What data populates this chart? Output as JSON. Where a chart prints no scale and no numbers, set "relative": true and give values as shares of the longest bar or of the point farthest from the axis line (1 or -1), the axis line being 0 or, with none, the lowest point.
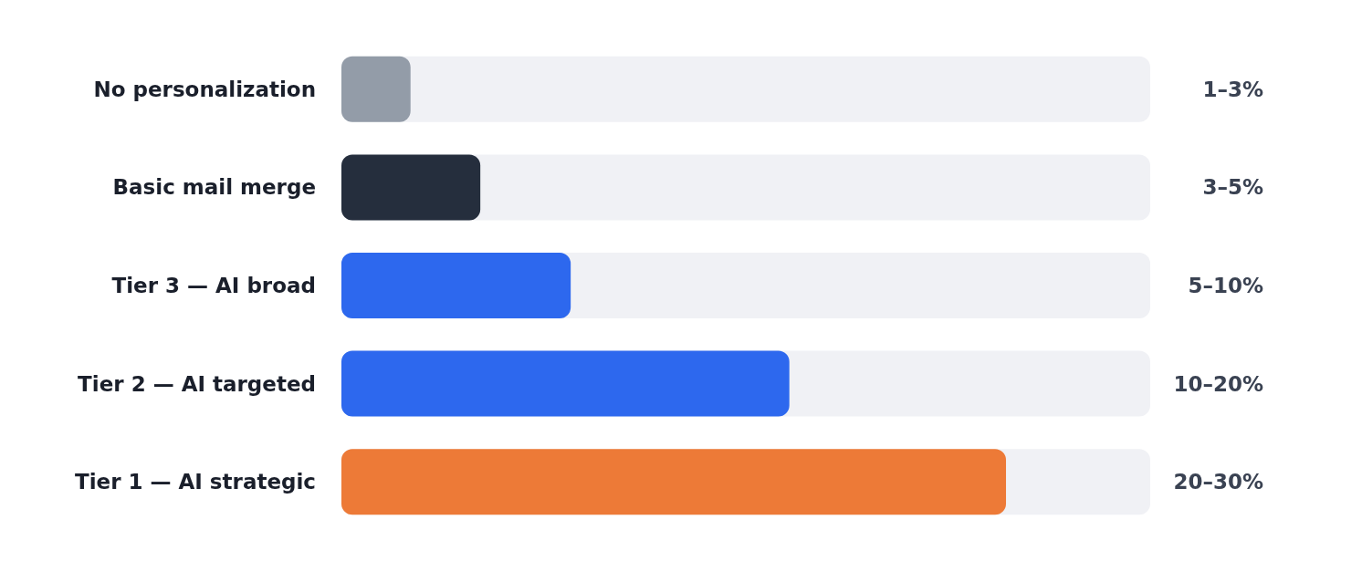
{
  "chart_data": {
    "type": "bar",
    "orientation": "horizontal",
    "relative": true,
    "categories": [
      "No personalization",
      "Basic mail merge",
      "Tier 3 — AI broad",
      "Tier 2 — AI targeted",
      "Tier 1 — AI strategic"
    ],
    "values": [
      0.104,
      0.209,
      0.345,
      0.674,
      1
    ],
    "colors": [
      "#939ca8",
      "#252e3d",
      "#2d68ee",
      "#2d68ee",
      "#ed7a37"
    ],
    "annotations": [
      "1–3%",
      "3–5%",
      "5–10%",
      "10–20%",
      "20–30%"
    ]
  }
}
